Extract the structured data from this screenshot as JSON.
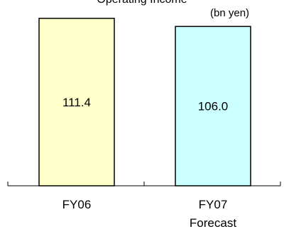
{
  "chart_data": {
    "type": "bar",
    "title": "Operating Income",
    "unit_label": "(bn yen)",
    "categories": [
      "FY06",
      "FY07 Forecast"
    ],
    "category_lines": [
      [
        "FY06"
      ],
      [
        "FY07",
        "Forecast"
      ]
    ],
    "values": [
      111.4,
      106.0
    ],
    "value_labels": [
      "111.4",
      "106.0"
    ],
    "colors": [
      "#FFFFCC",
      "#CCFFFF"
    ],
    "ylim": [
      0,
      117
    ],
    "grid": false,
    "legend": "none"
  }
}
